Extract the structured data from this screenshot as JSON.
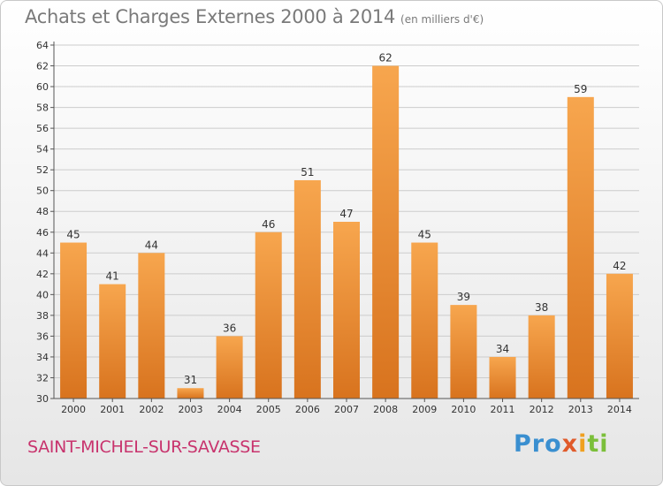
{
  "title": "Achats et Charges Externes 2000 à 2014",
  "subtitle": "(en milliers d'€)",
  "commune": "SAINT-MICHEL-SUR-SAVASSE",
  "logo": {
    "p1": "Pro",
    "p2": "x",
    "p3": "i",
    "p4": "ti"
  },
  "colors": {
    "bar_light": "#f7a64e",
    "bar_dark": "#d8731e",
    "grid": "#cccccc",
    "commune": "#c8336d"
  },
  "chart_data": {
    "type": "bar",
    "categories": [
      "2000",
      "2001",
      "2002",
      "2003",
      "2004",
      "2005",
      "2006",
      "2007",
      "2008",
      "2009",
      "2010",
      "2011",
      "2012",
      "2013",
      "2014"
    ],
    "values": [
      45,
      41,
      44,
      31,
      36,
      46,
      51,
      47,
      62,
      45,
      39,
      34,
      38,
      59,
      42
    ],
    "ylim": [
      30,
      64
    ],
    "yticks": [
      30,
      32,
      34,
      36,
      38,
      40,
      42,
      44,
      46,
      48,
      50,
      52,
      54,
      56,
      58,
      60,
      62,
      64
    ],
    "grid": true,
    "data_labels": true
  }
}
